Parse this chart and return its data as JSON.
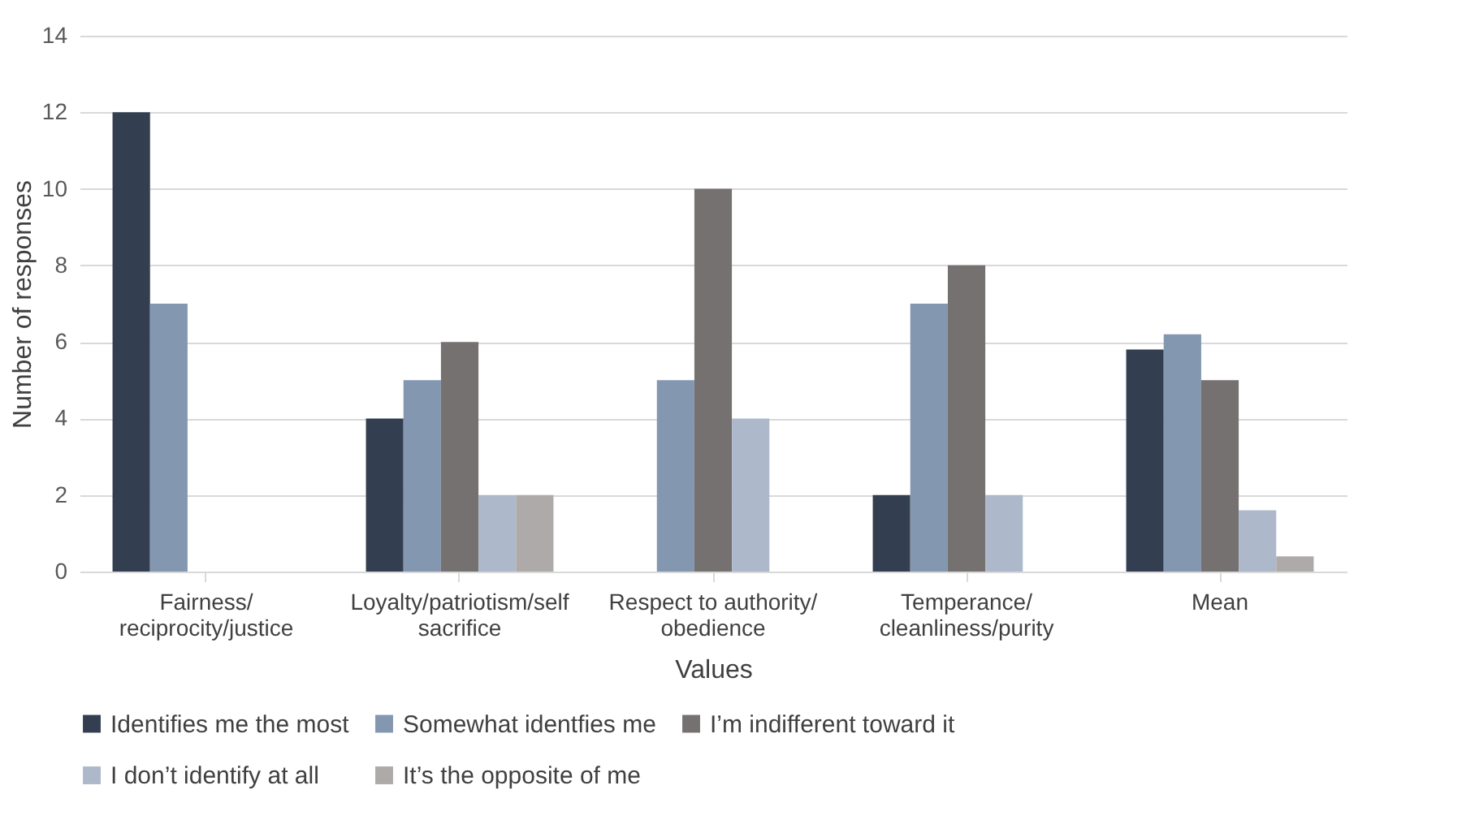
{
  "chart_data": {
    "type": "bar",
    "xlabel": "Values",
    "ylabel": "Number of responses",
    "categories": [
      "Fairness/ reciprocity/justice",
      "Loyalty/patriotism/self sacrifice",
      "Respect to authority/ obedience",
      "Temperance/ cleanliness/purity",
      "Mean"
    ],
    "series": [
      {
        "name": "Identifies me the most",
        "color": "#333f50",
        "values": [
          12,
          4,
          0,
          2,
          5.8
        ]
      },
      {
        "name": "Somewhat identfies me",
        "color": "#8497b0",
        "values": [
          7,
          5,
          5,
          7,
          6.2
        ]
      },
      {
        "name": "I’m indifferent toward it",
        "color": "#767171",
        "values": [
          0,
          6,
          10,
          8,
          5
        ]
      },
      {
        "name": "I don’t identify at all",
        "color": "#adb9ca",
        "values": [
          0,
          2,
          4,
          2,
          1.6
        ]
      },
      {
        "name": "It’s the opposite of me",
        "color": "#aeaaaa",
        "values": [
          0,
          2,
          0,
          0,
          0.4
        ]
      }
    ],
    "ylim": [
      0,
      14
    ],
    "yticks": [
      0,
      2,
      4,
      6,
      8,
      10,
      12,
      14
    ],
    "grid": "y",
    "legend": "bottom"
  }
}
